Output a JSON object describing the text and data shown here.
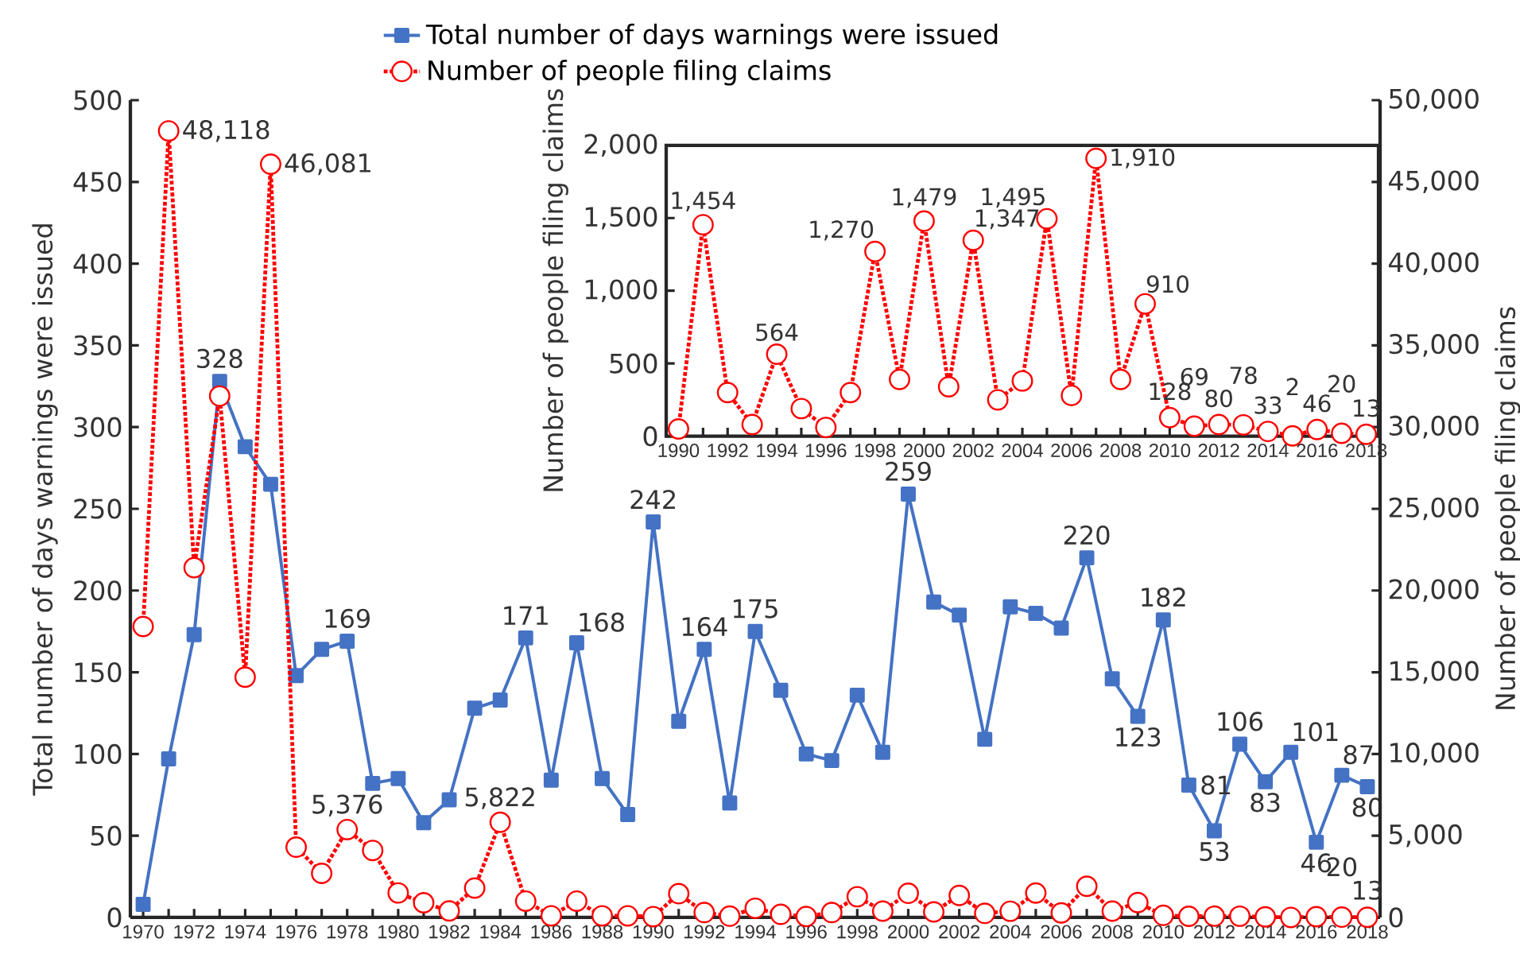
{
  "chart_data": [
    {
      "type": "line",
      "categories": [
        "1970",
        null,
        "1972",
        null,
        "1974",
        null,
        "1976",
        null,
        "1978",
        null,
        "1980",
        null,
        "1982",
        null,
        "1984",
        null,
        "1986",
        null,
        "1988",
        null,
        "1990",
        null,
        "1992",
        null,
        "1994",
        null,
        "1996",
        null,
        "1998",
        null,
        "2000",
        null,
        "2002",
        null,
        "2004",
        null,
        "2006",
        null,
        "2008",
        null,
        "2010",
        null,
        "2012",
        null,
        "2014",
        null,
        "2016",
        null,
        "2018"
      ],
      "series": [
        {
          "name": "Total number of days warnings were issued",
          "color": "#4472c4",
          "marker": "square",
          "line_style": "solid",
          "values": [
            8,
            97,
            173,
            328,
            288,
            265,
            148,
            164,
            169,
            82,
            85,
            58,
            72,
            128,
            133,
            171,
            84,
            168,
            85,
            63,
            242,
            120,
            164,
            70,
            175,
            139,
            100,
            96,
            136,
            101,
            259,
            193,
            185,
            109,
            190,
            186,
            177,
            220,
            146,
            123,
            182,
            81,
            53,
            106,
            83,
            101,
            46,
            87,
            80
          ],
          "value_labels": [
            null,
            null,
            null,
            "328",
            null,
            null,
            null,
            null,
            "169",
            null,
            null,
            null,
            null,
            null,
            null,
            "171",
            null,
            "168",
            null,
            null,
            "242",
            null,
            "164",
            null,
            "175",
            null,
            null,
            null,
            null,
            null,
            "259",
            null,
            null,
            null,
            null,
            null,
            null,
            "220",
            null,
            "123",
            "182",
            "81",
            "53",
            "106",
            "83",
            "101",
            "46",
            "87",
            "80"
          ]
        },
        {
          "name": "Number of people filing claims",
          "color": "#ff0000",
          "marker": "circle",
          "line_style": "dotted",
          "axis": "y2",
          "values": [
            17800,
            48118,
            21400,
            31900,
            14700,
            46081,
            4300,
            2700,
            5376,
            4100,
            1500,
            900,
            400,
            1800,
            5822,
            1000,
            100,
            1000,
            100,
            100,
            50,
            1454,
            300,
            80,
            564,
            190,
            60,
            300,
            1270,
            390,
            1479,
            340,
            1347,
            250,
            380,
            1495,
            280,
            1910,
            390,
            910,
            128,
            69,
            80,
            78,
            33,
            2,
            46,
            20,
            13
          ],
          "value_labels": [
            null,
            "48,118",
            null,
            null,
            null,
            "46,081",
            null,
            null,
            "5,376",
            null,
            null,
            null,
            null,
            null,
            "5,822",
            null,
            null,
            null,
            null,
            null,
            null,
            null,
            null,
            null,
            null,
            null,
            null,
            null,
            null,
            null,
            null,
            null,
            null,
            null,
            null,
            null,
            null,
            null,
            null,
            null,
            null,
            null,
            null,
            null,
            null,
            null,
            null,
            "20",
            "13"
          ]
        }
      ],
      "ylabel": "Total number of days warnings were issued",
      "y2label": "Number of people filing claims",
      "ylim": [
        0,
        500
      ],
      "yticks": [
        0,
        50,
        100,
        150,
        200,
        250,
        300,
        350,
        400,
        450,
        500
      ],
      "y2lim": [
        0,
        50000
      ],
      "y2ticks": [
        0,
        {
          "value": 5000,
          "label": "5,000"
        },
        {
          "value": 10000,
          "label": "10,000"
        },
        {
          "value": 15000,
          "label": "15,000"
        },
        {
          "value": 20000,
          "label": "20,000"
        },
        {
          "value": 25000,
          "label": "25,000"
        },
        {
          "value": 30000,
          "label": "30,000"
        },
        {
          "value": 35000,
          "label": "35,000"
        },
        {
          "value": 40000,
          "label": "40,000"
        },
        {
          "value": 45000,
          "label": "45,000"
        },
        {
          "value": 50000,
          "label": "50,000"
        }
      ],
      "legend": "top"
    },
    {
      "type": "line",
      "categories": [
        "1990",
        null,
        "1992",
        null,
        "1994",
        null,
        "1996",
        null,
        "1998",
        null,
        "2000",
        null,
        "2002",
        null,
        "2004",
        null,
        "2006",
        null,
        "2008",
        null,
        "2010",
        null,
        "2012",
        null,
        "2014",
        null,
        "2016",
        null,
        "2018"
      ],
      "series": [
        {
          "color": "#ff0000",
          "marker": "circle",
          "line_style": "dotted",
          "values": [
            50,
            1454,
            300,
            80,
            564,
            190,
            60,
            300,
            1270,
            390,
            1479,
            340,
            1347,
            250,
            380,
            1495,
            280,
            1910,
            390,
            910,
            128,
            69,
            80,
            78,
            33,
            2,
            46,
            20,
            13
          ],
          "value_labels": [
            null,
            "1,454",
            null,
            null,
            "564",
            null,
            null,
            null,
            "1,270",
            null,
            "1,479",
            null,
            "1,347",
            null,
            null,
            "1,495",
            null,
            "1,910",
            null,
            "910",
            "128",
            "69",
            "80",
            "78",
            "33",
            "2",
            "46",
            "20",
            "13"
          ]
        }
      ],
      "ylabel": "Number of people filing claims",
      "ylim": [
        0,
        2000
      ],
      "yticks": [
        0,
        500,
        {
          "value": 1000,
          "label": "1,000"
        },
        {
          "value": 1500,
          "label": "1,500"
        },
        {
          "value": 2000,
          "label": "2,000"
        }
      ]
    }
  ]
}
